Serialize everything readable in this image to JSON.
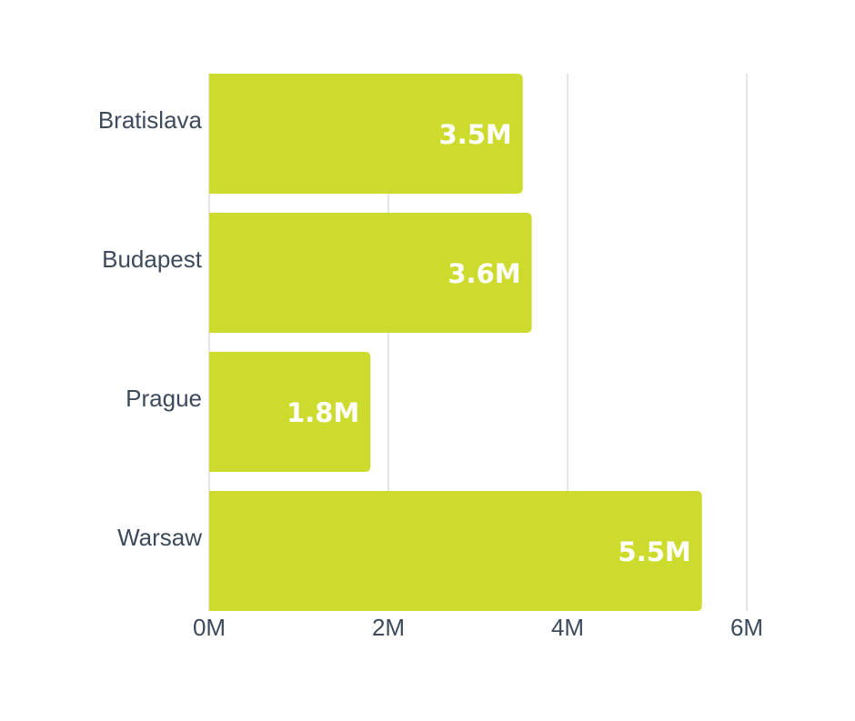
{
  "chart_data": {
    "type": "bar",
    "orientation": "horizontal",
    "categories": [
      "Bratislava",
      "Budapest",
      "Prague",
      "Warsaw"
    ],
    "values": [
      3.5,
      3.6,
      1.8,
      5.5
    ],
    "data_labels": [
      "3.5M",
      "3.6M",
      "1.8M",
      "5.5M"
    ],
    "xlim": [
      0,
      6
    ],
    "x_ticks": [
      0,
      2,
      4,
      6
    ],
    "x_tick_labels": [
      "0M",
      "2M",
      "4M",
      "6M"
    ],
    "title": "",
    "xlabel": "",
    "ylabel": "",
    "grid": "vertical",
    "legend": "none",
    "bar_color": "#cddb2e",
    "label_color": "#ffffff",
    "text_color": "#3d4a5c",
    "grid_color": "#dddddd"
  }
}
